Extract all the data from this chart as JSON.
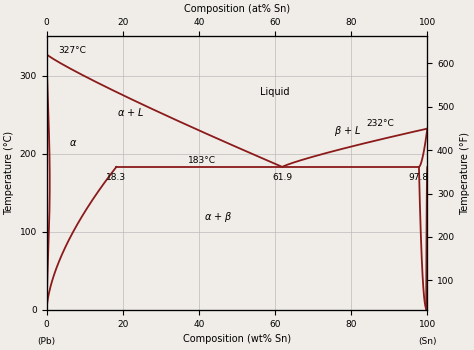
{
  "title_top": "Composition (at% Sn)",
  "xlabel": "Composition (wt% Sn)",
  "ylabel_left": "Temperature (°C)",
  "ylabel_right": "Temperature (°F)",
  "xlim": [
    0,
    100
  ],
  "ylim_C": [
    0,
    350
  ],
  "ylim_F": [
    32,
    662
  ],
  "xticks": [
    0,
    20,
    40,
    60,
    80,
    100
  ],
  "yticks_C": [
    0,
    100,
    200,
    300
  ],
  "yticks_F": [
    100,
    200,
    300,
    400,
    500,
    600
  ],
  "line_color": "#8B1A1A",
  "line_width": 1.3,
  "background_color": "#f0ede8",
  "grid_color": "#bbbbbb",
  "Pb_melting": 327,
  "Sn_melting": 232,
  "eutectic_T": 183,
  "eutectic_comp": 61.9,
  "alpha_solvus_comp": 18.3,
  "beta_solvus_comp": 97.8,
  "font_size_labels": 7,
  "font_size_annot": 6.5,
  "font_size_region": 7
}
